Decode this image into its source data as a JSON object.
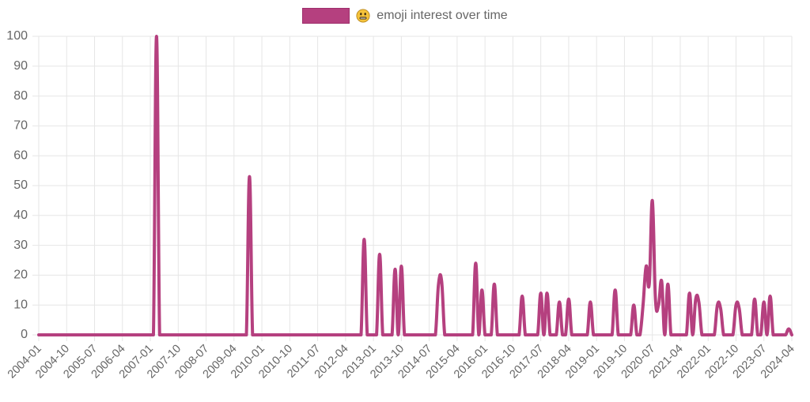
{
  "legend": {
    "emoji": "😐",
    "emoji_name": "face-with-mouth-closed-emoji",
    "label": "emoji interest over time",
    "color": "#b5407f",
    "border_color": "#9e2f6c"
  },
  "chart_data": {
    "type": "line",
    "title": "",
    "legend": [
      "😐 emoji interest over time"
    ],
    "legend_position": "top",
    "xlabel": "",
    "ylabel": "",
    "ylim": [
      0,
      100
    ],
    "y_ticks": [
      0,
      10,
      20,
      30,
      40,
      50,
      60,
      70,
      80,
      90,
      100
    ],
    "x_range": [
      "2004-01",
      "2024-04"
    ],
    "x_tick_labels": [
      "2004-01",
      "2004-10",
      "2005-07",
      "2006-04",
      "2007-01",
      "2007-10",
      "2008-07",
      "2009-04",
      "2010-01",
      "2010-10",
      "2011-07",
      "2012-04",
      "2013-01",
      "2013-10",
      "2014-07",
      "2015-04",
      "2016-01",
      "2016-10",
      "2017-07",
      "2018-04",
      "2019-01",
      "2019-10",
      "2020-07",
      "2021-04",
      "2022-01",
      "2022-10",
      "2023-07",
      "2024-04"
    ],
    "grid": true,
    "line_color": "#b5407f",
    "series": [
      {
        "name": "😐 emoji interest over time",
        "default_value": 0,
        "nonzero_points": {
          "2007-03": 100,
          "2009-09": 53,
          "2012-10": 32,
          "2013-03": 27,
          "2013-08": 22,
          "2013-10": 23,
          "2014-10": 17,
          "2014-11": 18,
          "2015-10": 24,
          "2015-12": 15,
          "2016-04": 17,
          "2017-01": 13,
          "2017-07": 14,
          "2017-09": 14,
          "2018-01": 11,
          "2018-04": 12,
          "2018-11": 11,
          "2019-07": 15,
          "2020-01": 10,
          "2020-04": 10,
          "2020-05": 23,
          "2020-06": 17,
          "2020-07": 45,
          "2020-08": 12,
          "2020-09": 10,
          "2020-10": 18,
          "2020-12": 17,
          "2021-07": 14,
          "2021-09": 12,
          "2021-10": 11,
          "2022-04": 10,
          "2022-05": 9,
          "2022-10": 10,
          "2022-11": 9,
          "2023-04": 12,
          "2023-07": 11,
          "2023-09": 13,
          "2024-03": 2
        }
      }
    ]
  }
}
